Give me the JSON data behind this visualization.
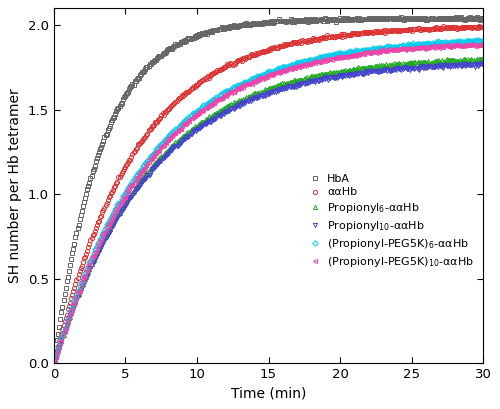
{
  "title": "",
  "xlabel": "Time (min)",
  "ylabel": "SH number per Hb tetramer",
  "xlim": [
    0,
    30
  ],
  "ylim": [
    0,
    2.1
  ],
  "xticks": [
    0,
    5,
    10,
    15,
    20,
    25,
    30
  ],
  "yticks": [
    0.0,
    0.5,
    1.0,
    1.5,
    2.0
  ],
  "series": [
    {
      "label": "HbA",
      "color": "#666666",
      "marker": "s",
      "marker_size": 3.0,
      "ymax": 2.04,
      "k": 0.3,
      "fillstyle": "none",
      "mew": 0.7
    },
    {
      "label": "ααHb",
      "color": "#dd3333",
      "marker": "o",
      "marker_size": 3.0,
      "ymax": 2.0,
      "k": 0.175,
      "fillstyle": "none",
      "mew": 0.7
    },
    {
      "label": "Propionyl$_6$-ααHb",
      "color": "#22aa22",
      "marker": "^",
      "marker_size": 3.0,
      "ymax": 1.82,
      "k": 0.148,
      "fillstyle": "none",
      "mew": 0.7
    },
    {
      "label": "Propionyl$_{10}$-ααHb",
      "color": "#4444cc",
      "marker": "v",
      "marker_size": 3.0,
      "ymax": 1.79,
      "k": 0.148,
      "fillstyle": "none",
      "mew": 0.7
    },
    {
      "label": "(Propionyl-PEG5K)$_6$-ααHb",
      "color": "#00ccee",
      "marker": "D",
      "marker_size": 2.8,
      "ymax": 1.93,
      "k": 0.148,
      "fillstyle": "none",
      "mew": 0.7
    },
    {
      "label": "(Propionyl-PEG5K)$_{10}$-ααHb",
      "color": "#ee44aa",
      "marker": "<",
      "marker_size": 3.0,
      "ymax": 1.91,
      "k": 0.148,
      "fillstyle": "none",
      "mew": 0.7
    }
  ],
  "n_points": 400,
  "noise_std": 0.004,
  "figsize": [
    5.0,
    4.09
  ],
  "dpi": 100
}
